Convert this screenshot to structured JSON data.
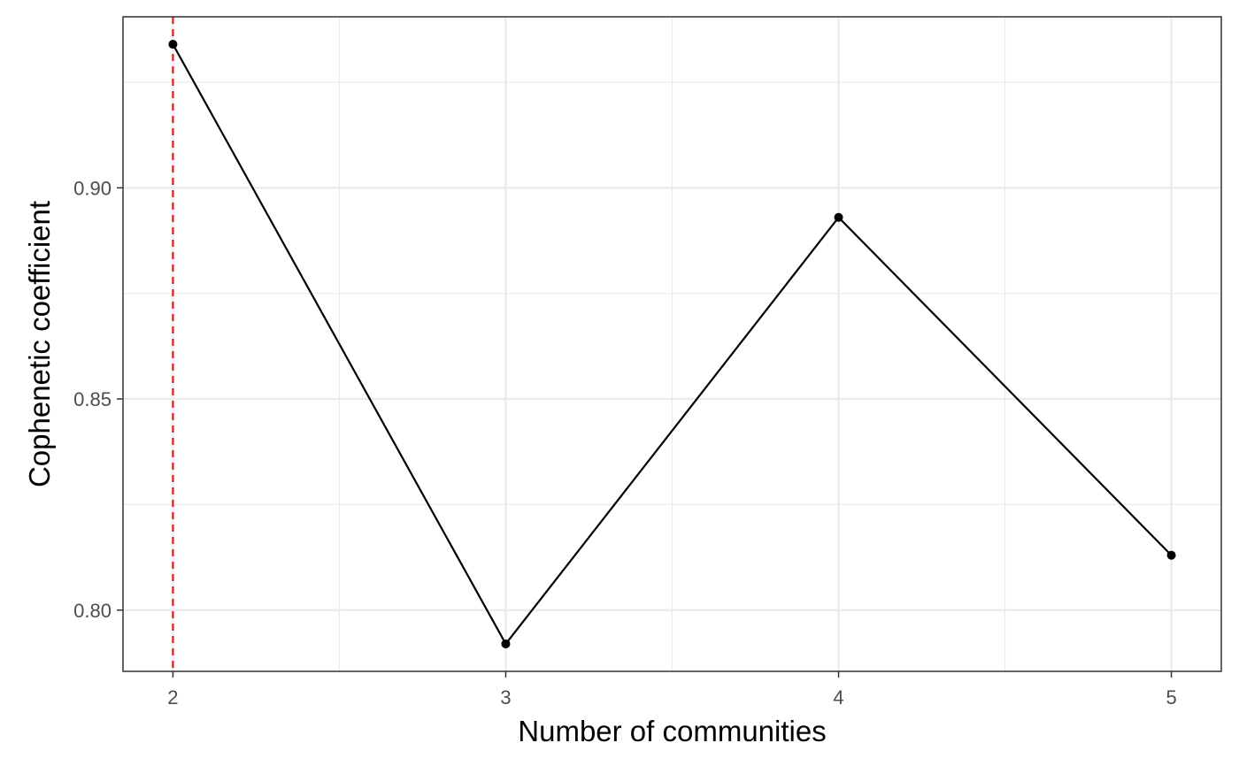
{
  "chart_data": {
    "type": "line",
    "title": "",
    "xlabel": "Number of communities",
    "ylabel": "Cophenetic coefficient",
    "x": [
      2,
      3,
      4,
      5
    ],
    "x_tick_labels": [
      "2",
      "3",
      "4",
      "5"
    ],
    "xlim": [
      1.85,
      5.15
    ],
    "y_ticks": [
      0.8,
      0.85,
      0.9
    ],
    "y_tick_labels": [
      "0.80",
      "0.85",
      "0.90"
    ],
    "ylim": [
      0.7855,
      0.9405
    ],
    "series": [
      {
        "values": [
          0.934,
          0.792,
          0.893,
          0.813
        ]
      }
    ],
    "reference_line": {
      "orientation": "vertical",
      "x": 2,
      "style": "dashed",
      "color": "#e41a1c"
    },
    "grid": true,
    "legend": "none",
    "colors": {
      "line": "#000000",
      "points": "#000000",
      "grid": "#ebebeb",
      "panel_border": "#333333"
    }
  }
}
